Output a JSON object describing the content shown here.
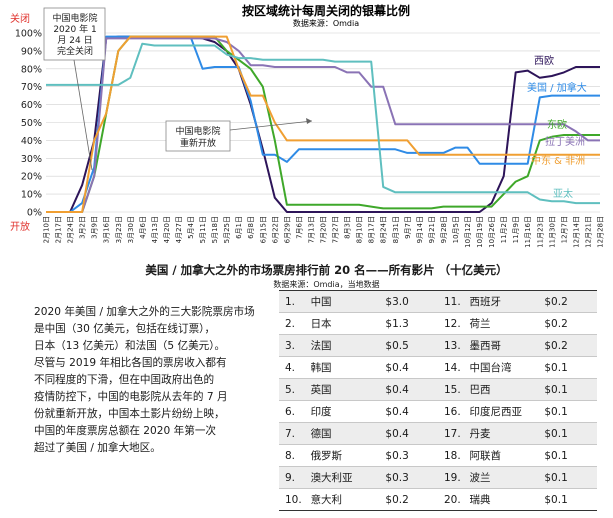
{
  "chart_data": [
    {
      "type": "line",
      "title": "按区域统计每周关闭的银幕比例",
      "subtitle": "数据来源：Omdia",
      "y_ticks": [
        "100%",
        "90%",
        "80%",
        "70%",
        "60%",
        "50%",
        "40%",
        "30%",
        "20%",
        "10%",
        "0%"
      ],
      "ylim": [
        0,
        100
      ],
      "y_top_label": "关闭",
      "y_bottom_label": "开放",
      "x": [
        "2月10日",
        "2月17日",
        "2月24日",
        "3月2日",
        "3月9日",
        "3月16日",
        "3月23日",
        "3月30日",
        "4月6日",
        "4月13日",
        "4月20日",
        "4月27日",
        "5月4日",
        "5月11日",
        "5月18日",
        "5月25日",
        "6月1日",
        "6月8日",
        "6月15日",
        "6月22日",
        "6月29日",
        "7月6日",
        "7月13日",
        "7月20日",
        "7月27日",
        "8月3日",
        "8月10日",
        "8月17日",
        "8月24日",
        "8月31日",
        "9月7日",
        "9月14日",
        "9月21日",
        "9月28日",
        "10月5日",
        "10月12日",
        "10月19日",
        "10月26日",
        "11月2日",
        "11月9日",
        "11月16日",
        "11月23日",
        "11月30日",
        "12月7日",
        "12月14日",
        "12月21日",
        "12月28日"
      ],
      "series": [
        {
          "name": "西欧",
          "color": "#2d1459",
          "values": [
            0,
            0,
            0,
            15,
            40,
            97,
            98,
            98,
            98,
            98,
            98,
            98,
            98,
            97,
            95,
            90,
            80,
            60,
            35,
            8,
            0,
            0,
            0,
            0,
            0,
            0,
            0,
            0,
            0,
            0,
            0,
            0,
            0,
            0,
            0,
            0,
            0,
            5,
            20,
            78,
            79,
            75,
            76,
            78,
            81,
            81,
            81
          ]
        },
        {
          "name": "美国 / 加拿大",
          "color": "#2f8be6",
          "values": [
            0,
            0,
            0,
            5,
            25,
            98,
            98,
            98,
            98,
            98,
            98,
            98,
            98,
            80,
            81,
            81,
            81,
            62,
            32,
            32,
            28,
            35,
            35,
            35,
            35,
            35,
            35,
            35,
            35,
            35,
            33,
            33,
            33,
            33,
            36,
            36,
            27,
            27,
            27,
            27,
            27,
            64,
            65,
            65,
            65,
            65,
            65
          ]
        },
        {
          "name": "东欧",
          "color": "#3fa82a",
          "values": [
            0,
            0,
            0,
            0,
            20,
            55,
            90,
            98,
            98,
            98,
            98,
            98,
            98,
            98,
            98,
            90,
            85,
            80,
            70,
            40,
            4,
            4,
            4,
            4,
            4,
            4,
            4,
            3,
            2,
            2,
            2,
            2,
            2,
            3,
            3,
            3,
            3,
            3,
            10,
            17,
            20,
            40,
            42,
            43,
            43,
            43,
            43
          ]
        },
        {
          "name": "拉丁美洲",
          "color": "#8a73b5",
          "values": [
            0,
            0,
            0,
            0,
            20,
            97,
            97,
            97,
            97,
            97,
            97,
            97,
            97,
            97,
            97,
            95,
            90,
            82,
            82,
            81,
            81,
            81,
            81,
            81,
            81,
            78,
            78,
            70,
            70,
            49,
            49,
            49,
            49,
            49,
            49,
            49,
            49,
            49,
            49,
            49,
            49,
            49,
            49,
            49,
            45,
            40,
            40
          ]
        },
        {
          "name": "中东 & 非洲",
          "color": "#f09f32",
          "values": [
            0,
            0,
            0,
            0,
            40,
            55,
            90,
            98,
            98,
            98,
            98,
            98,
            98,
            98,
            98,
            98,
            80,
            65,
            65,
            50,
            40,
            40,
            40,
            40,
            40,
            40,
            40,
            40,
            40,
            40,
            40,
            32,
            32,
            32,
            32,
            32,
            32,
            32,
            32,
            32,
            32,
            32,
            32,
            32,
            32,
            32,
            32
          ]
        },
        {
          "name": "亚太",
          "color": "#5fbfbf",
          "values": [
            71,
            71,
            71,
            71,
            71,
            71,
            71,
            75,
            94,
            93,
            93,
            93,
            93,
            93,
            93,
            88,
            86,
            86,
            85,
            85,
            85,
            85,
            85,
            85,
            84,
            84,
            84,
            84,
            14,
            11,
            11,
            11,
            11,
            11,
            11,
            11,
            11,
            11,
            11,
            11,
            11,
            7,
            6,
            6,
            5,
            5,
            5
          ]
        }
      ],
      "annotations": [
        {
          "lines": [
            "中国电影院",
            "2020 年 1",
            "月 24 日",
            "完全关闭"
          ]
        },
        {
          "lines": [
            "中国电影院",
            "重新开放"
          ]
        }
      ]
    },
    {
      "type": "table",
      "title": "美国 / 加拿大之外的市场票房排行前 20 名——所有影片 （十亿美元）",
      "subtitle": "数据来源：Omdia，当地数据",
      "rows": [
        [
          {
            "num": "1.",
            "country": "中国",
            "value": "$3.0"
          },
          {
            "num": "11.",
            "country": "西班牙",
            "value": "$0.2"
          }
        ],
        [
          {
            "num": "2.",
            "country": "日本",
            "value": "$1.3"
          },
          {
            "num": "12.",
            "country": "荷兰",
            "value": "$0.2"
          }
        ],
        [
          {
            "num": "3.",
            "country": "法国",
            "value": "$0.5"
          },
          {
            "num": "13.",
            "country": "墨西哥",
            "value": "$0.2"
          }
        ],
        [
          {
            "num": "4.",
            "country": "韩国",
            "value": "$0.4"
          },
          {
            "num": "14.",
            "country": "中国台湾",
            "value": "$0.1"
          }
        ],
        [
          {
            "num": "5.",
            "country": "英国",
            "value": "$0.4"
          },
          {
            "num": "15.",
            "country": "巴西",
            "value": "$0.1"
          }
        ],
        [
          {
            "num": "6.",
            "country": "印度",
            "value": "$0.4"
          },
          {
            "num": "16.",
            "country": "印度尼西亚",
            "value": "$0.1"
          }
        ],
        [
          {
            "num": "7.",
            "country": "德国",
            "value": "$0.4"
          },
          {
            "num": "17.",
            "country": "丹麦",
            "value": "$0.1"
          }
        ],
        [
          {
            "num": "8.",
            "country": "俄罗斯",
            "value": "$0.3"
          },
          {
            "num": "18.",
            "country": "阿联酋",
            "value": "$0.1"
          }
        ],
        [
          {
            "num": "9.",
            "country": "澳大利亚",
            "value": "$0.3"
          },
          {
            "num": "19.",
            "country": "波兰",
            "value": "$0.1"
          }
        ],
        [
          {
            "num": "10.",
            "country": "意大利",
            "value": "$0.2"
          },
          {
            "num": "20.",
            "country": "瑞典",
            "value": "$0.1"
          }
        ]
      ]
    }
  ],
  "paragraph": {
    "lines": [
      "2020 年美国 / 加拿大之外的三大影院票房市场",
      "是中国（30 亿美元，包括在线订票），",
      "日本（13 亿美元）和法国（5 亿美元）。",
      "尽管与 2019 年相比各国的票房收入都有",
      "不同程度的下滑，但在中国政府出色的",
      "疫情防控下，中国的电影院从去年的 7 月",
      "份就重新开放，中国本土影片纷纷上映，",
      "中国的年度票房总额在 2020 年第一次",
      "超过了美国 / 加拿大地区。"
    ]
  }
}
